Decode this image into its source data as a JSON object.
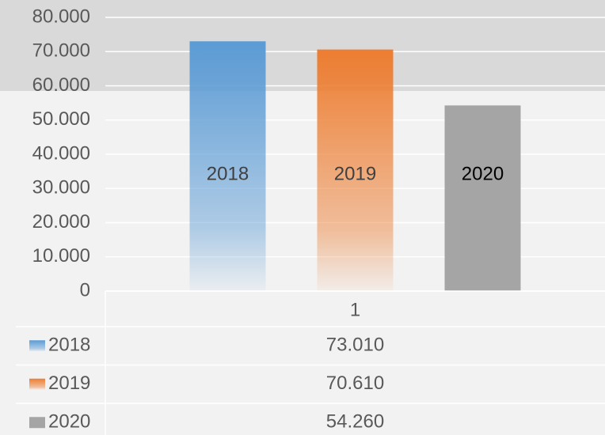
{
  "chart_data": {
    "type": "bar",
    "categories": [
      "1"
    ],
    "series": [
      {
        "name": "2018",
        "color": "#5b9bd5",
        "fill": "gradient",
        "values": [
          73010
        ],
        "value_labels": [
          "73.010"
        ]
      },
      {
        "name": "2019",
        "color": "#ed7d31",
        "fill": "gradient",
        "values": [
          70610
        ],
        "value_labels": [
          "70.610"
        ]
      },
      {
        "name": "2020",
        "color": "#a5a5a5",
        "fill": "solid",
        "values": [
          54260
        ],
        "value_labels": [
          "54.260"
        ]
      }
    ],
    "ylim": [
      0,
      80000
    ],
    "yticks": [
      0,
      {
        "value": 10000,
        "label": "10.000"
      },
      {
        "value": 20000,
        "label": "20.000"
      },
      {
        "value": 30000,
        "label": "30.000"
      },
      {
        "value": 40000,
        "label": "40.000"
      },
      {
        "value": 50000,
        "label": "50.000"
      },
      {
        "value": 60000,
        "label": "60.000"
      },
      {
        "value": 70000,
        "label": "70.000"
      },
      {
        "value": 80000,
        "label": "80.000"
      }
    ],
    "grid": true,
    "data_table": true
  }
}
